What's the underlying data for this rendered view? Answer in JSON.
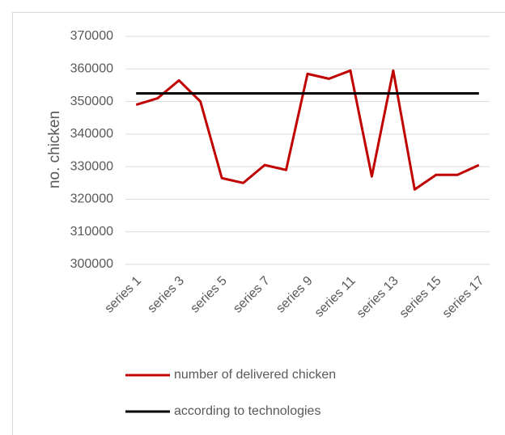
{
  "chart_data": {
    "type": "line",
    "y_label": "no. chicken",
    "categories": [
      "series 1",
      null,
      "series 3",
      null,
      "series 5",
      null,
      "series 7",
      null,
      "series 9",
      null,
      "series 11",
      null,
      "series 13",
      null,
      "series 15",
      null,
      "series 17"
    ],
    "series": [
      {
        "name": "number of delivered chicken",
        "color": "#c00000",
        "values": [
          349000,
          351000,
          356500,
          350000,
          326500,
          325000,
          330500,
          329000,
          358500,
          357000,
          359500,
          327000,
          359500,
          323000,
          327500,
          327500,
          330500
        ]
      },
      {
        "name": "according to technologies",
        "color": "#000000",
        "values": [
          352500,
          352500,
          352500,
          352500,
          352500,
          352500,
          352500,
          352500,
          352500,
          352500,
          352500,
          352500,
          352500,
          352500,
          352500,
          352500,
          352500
        ]
      }
    ],
    "ylim": [
      300000,
      370000
    ],
    "yticks": [
      300000,
      310000,
      320000,
      330000,
      340000,
      350000,
      360000,
      370000
    ],
    "grid": true,
    "legend": "bottom"
  }
}
